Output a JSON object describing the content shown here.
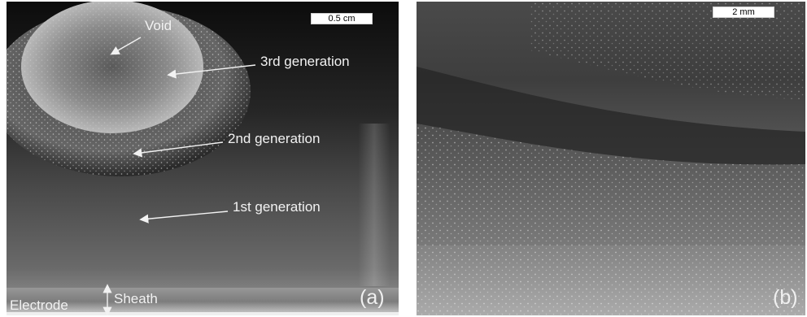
{
  "panel_a": {
    "scale_bar": "0.5 cm",
    "labels": {
      "void": "Void",
      "third_generation": "3rd generation",
      "second_generation": "2nd generation",
      "first_generation": "1st generation",
      "electrode": "Electrode",
      "sheath": "Sheath"
    },
    "panel_letter": "(a)"
  },
  "panel_b": {
    "scale_bar": "2 mm",
    "panel_letter": "(b)"
  }
}
